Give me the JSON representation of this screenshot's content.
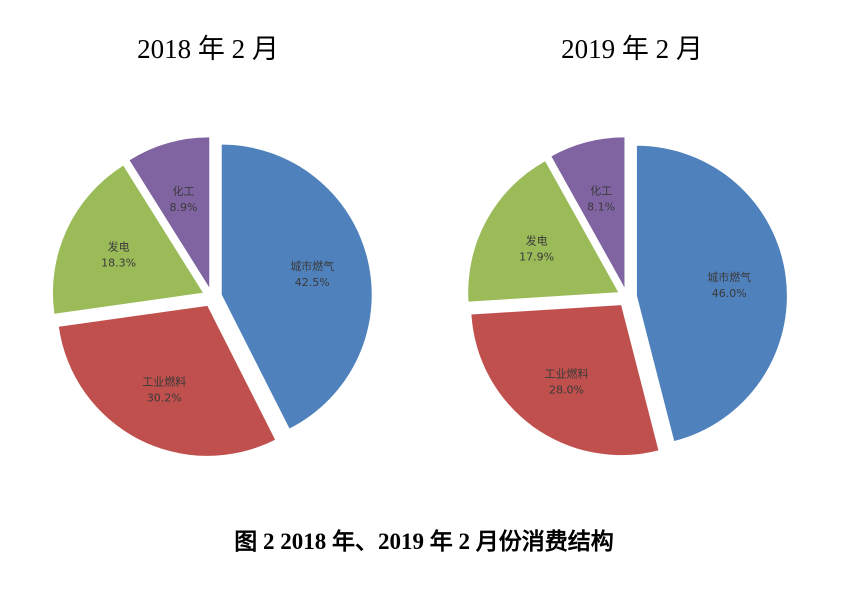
{
  "chart_data": [
    {
      "type": "pie",
      "title": "2018 年 2 月",
      "slices": [
        {
          "name": "城市燃气",
          "value": 42.5,
          "label": "42.5%",
          "color": "#4F81BD"
        },
        {
          "name": "工业燃料",
          "value": 30.2,
          "label": "30.2%",
          "color": "#C0504D"
        },
        {
          "name": "发电",
          "value": 18.3,
          "label": "18.3%",
          "color": "#9BBB59"
        },
        {
          "name": "化工",
          "value": 8.9,
          "label": "8.9%",
          "color": "#8064A2"
        }
      ]
    },
    {
      "type": "pie",
      "title": "2019 年 2 月",
      "slices": [
        {
          "name": "城市燃气",
          "value": 46.0,
          "label": "46.0%",
          "color": "#4F81BD"
        },
        {
          "name": "工业燃料",
          "value": 28.0,
          "label": "28.0%",
          "color": "#C0504D"
        },
        {
          "name": "发电",
          "value": 17.9,
          "label": "17.9%",
          "color": "#9BBB59"
        },
        {
          "name": "化工",
          "value": 8.1,
          "label": "8.1%",
          "color": "#8064A2"
        }
      ]
    }
  ],
  "caption": "图 2 2018 年、2019 年 2 月份消费结构"
}
